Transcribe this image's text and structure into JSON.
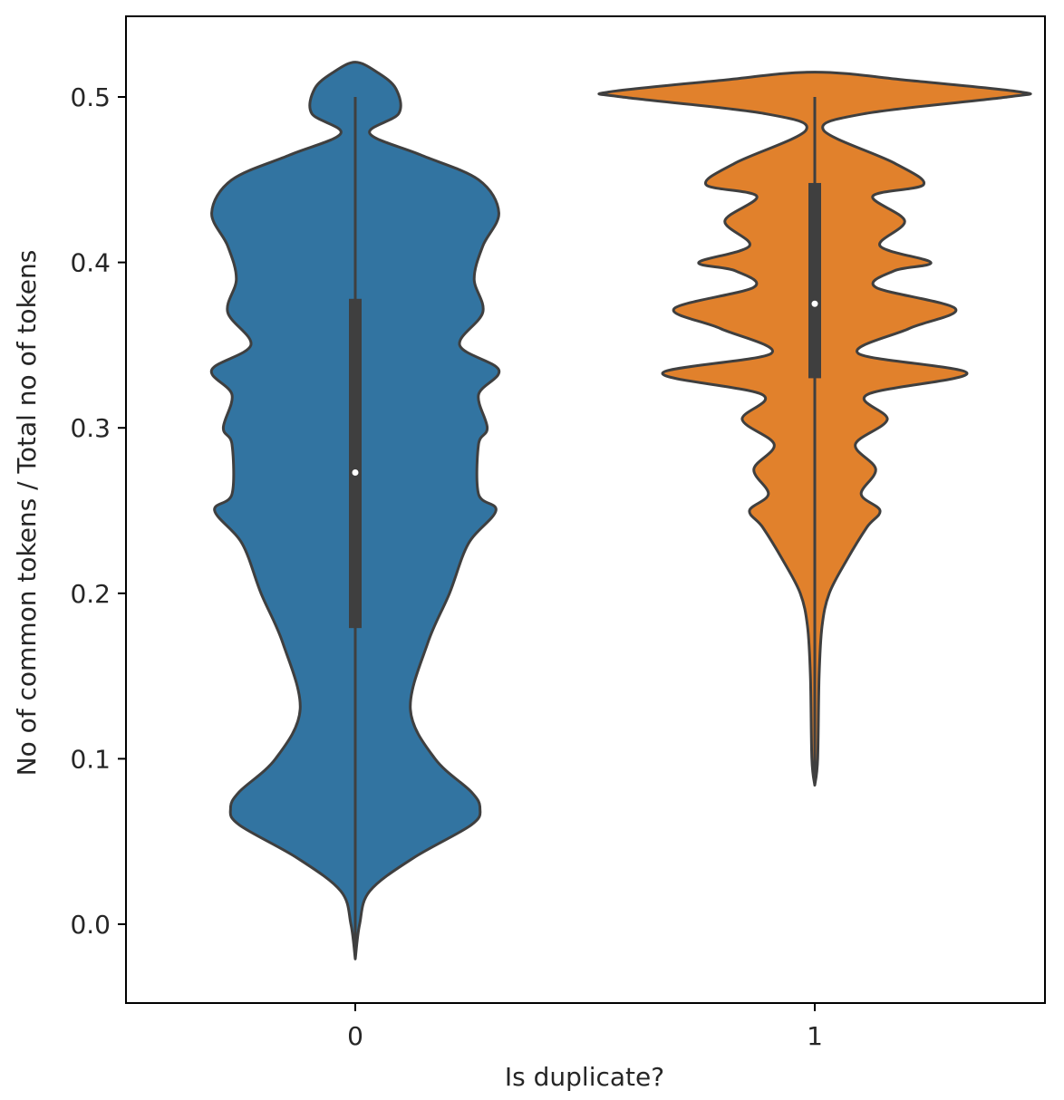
{
  "chart_data": {
    "type": "violin",
    "xlabel": "Is duplicate?",
    "ylabel": "No of common tokens / Total no of tokens",
    "ylim": [
      -0.048,
      0.548
    ],
    "xticks": [
      "0",
      "1"
    ],
    "yticks": [
      "0.0",
      "0.1",
      "0.2",
      "0.3",
      "0.4",
      "0.5"
    ],
    "ytick_values": [
      0.0,
      0.1,
      0.2,
      0.3,
      0.4,
      0.5
    ],
    "grid": false,
    "colors": {
      "outline": "#3f3f3f",
      "box": "#3f3f3f",
      "median": "#ffffff",
      "axis": "#000000"
    },
    "series": [
      {
        "name": "0",
        "color": "#3274a1",
        "whisker": [
          -0.02,
          0.5
        ],
        "box": [
          0.179,
          0.378
        ],
        "median": 0.273,
        "density": [
          [
            -0.021,
            0.0
          ],
          [
            0.0,
            0.03
          ],
          [
            0.02,
            0.1
          ],
          [
            0.04,
            0.4
          ],
          [
            0.06,
            0.8
          ],
          [
            0.07,
            0.86
          ],
          [
            0.08,
            0.8
          ],
          [
            0.1,
            0.55
          ],
          [
            0.13,
            0.38
          ],
          [
            0.17,
            0.5
          ],
          [
            0.2,
            0.65
          ],
          [
            0.23,
            0.78
          ],
          [
            0.25,
            0.97
          ],
          [
            0.26,
            0.85
          ],
          [
            0.29,
            0.85
          ],
          [
            0.3,
            0.91
          ],
          [
            0.32,
            0.85
          ],
          [
            0.335,
            0.99
          ],
          [
            0.35,
            0.72
          ],
          [
            0.37,
            0.88
          ],
          [
            0.39,
            0.82
          ],
          [
            0.41,
            0.88
          ],
          [
            0.43,
            0.99
          ],
          [
            0.45,
            0.85
          ],
          [
            0.465,
            0.45
          ],
          [
            0.478,
            0.1
          ],
          [
            0.49,
            0.3
          ],
          [
            0.505,
            0.28
          ],
          [
            0.515,
            0.15
          ],
          [
            0.521,
            0.0
          ]
        ]
      },
      {
        "name": "1",
        "color": "#e1812c",
        "whisker": [
          0.085,
          0.5
        ],
        "box": [
          0.33,
          0.448
        ],
        "median": 0.375,
        "density": [
          [
            0.084,
            0.0
          ],
          [
            0.1,
            0.02
          ],
          [
            0.15,
            0.03
          ],
          [
            0.18,
            0.05
          ],
          [
            0.2,
            0.1
          ],
          [
            0.22,
            0.22
          ],
          [
            0.24,
            0.36
          ],
          [
            0.25,
            0.45
          ],
          [
            0.26,
            0.32
          ],
          [
            0.275,
            0.42
          ],
          [
            0.29,
            0.28
          ],
          [
            0.305,
            0.5
          ],
          [
            0.32,
            0.36
          ],
          [
            0.333,
            1.05
          ],
          [
            0.345,
            0.3
          ],
          [
            0.36,
            0.65
          ],
          [
            0.372,
            0.97
          ],
          [
            0.385,
            0.42
          ],
          [
            0.395,
            0.55
          ],
          [
            0.4,
            0.8
          ],
          [
            0.41,
            0.45
          ],
          [
            0.425,
            0.62
          ],
          [
            0.44,
            0.4
          ],
          [
            0.447,
            0.75
          ],
          [
            0.46,
            0.55
          ],
          [
            0.48,
            0.06
          ],
          [
            0.49,
            0.35
          ],
          [
            0.5,
            1.33
          ],
          [
            0.503,
            1.42
          ],
          [
            0.51,
            0.65
          ],
          [
            0.515,
            0.0
          ]
        ]
      }
    ]
  }
}
